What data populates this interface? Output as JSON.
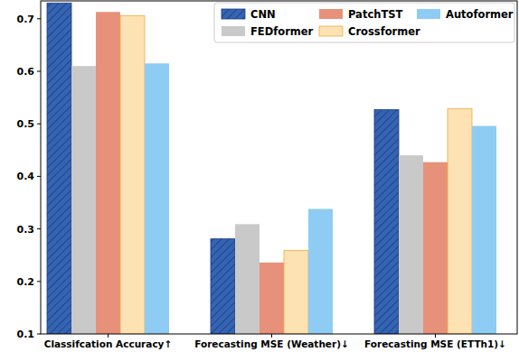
{
  "chart_data": {
    "type": "bar",
    "categories": [
      "Classifcation Accuracy↑",
      "Forecasting MSE (Weather)↓",
      "Forecasting MSE (ETTh1)↓"
    ],
    "series": [
      {
        "name": "CNN",
        "color": "#3564b3",
        "values": [
          0.73,
          0.281,
          0.527
        ]
      },
      {
        "name": "FEDformer",
        "color": "#c9c9c9",
        "values": [
          0.61,
          0.309,
          0.44
        ]
      },
      {
        "name": "PatchTST",
        "color": "#e8917a",
        "values": [
          0.713,
          0.236,
          0.427
        ]
      },
      {
        "name": "Crossformer",
        "color": "#fde2b4",
        "values": [
          0.706,
          0.259,
          0.529
        ]
      },
      {
        "name": "Autoformer",
        "color": "#8fccf4",
        "values": [
          0.615,
          0.338,
          0.496
        ]
      }
    ],
    "ylim": [
      0.1,
      0.734
    ],
    "yticks": [
      0.1,
      0.2,
      0.3,
      0.4,
      0.5,
      0.6,
      0.7
    ],
    "legend": "upper right",
    "grid": false
  }
}
